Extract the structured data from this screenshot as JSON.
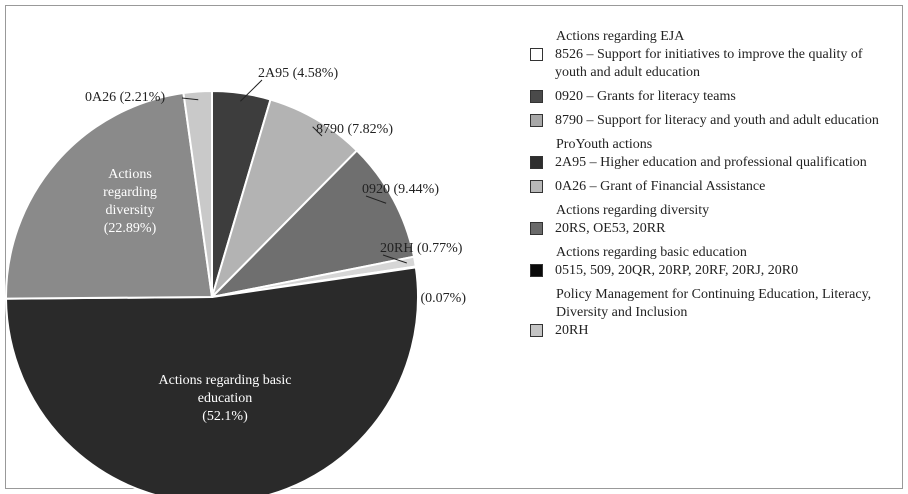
{
  "chart_data": {
    "type": "pie",
    "categories": [
      "2A95",
      "8790",
      "0920",
      "20RH",
      "8526",
      "Actions regarding basic education",
      "Actions regarding diversity",
      "0A26"
    ],
    "values": [
      4.58,
      7.82,
      9.44,
      0.77,
      0.07,
      52.1,
      22.89,
      2.21
    ],
    "value_labels": [
      "(4.58%)",
      "(7.82%)",
      "(9.44%)",
      "(0.77%)",
      "(0.07%)",
      "(52.1%)",
      "(22.89%)",
      "(2.21%)"
    ],
    "colors": [
      "#3d3d3d",
      "#b3b3b3",
      "#6f6f6f",
      "#d6d6d6",
      "#ffffff",
      "#2a2a2a",
      "#8a8a8a",
      "#c9c9c9"
    ],
    "legend": [
      {
        "heading": "Actions regarding EJA",
        "items": [
          {
            "label": "8526 – Support for initiatives to improve the quality of youth and adult education",
            "color": "#ffffff"
          },
          {
            "label": "0920 – Grants for literacy teams",
            "color": "#4a4a4a"
          },
          {
            "label": "8790 – Support for literacy and youth and adult education",
            "color": "#a8a8a8"
          }
        ]
      },
      {
        "heading": "ProYouth actions",
        "items": [
          {
            "label": "2A95 – Higher education and professional qualification",
            "color": "#2e2e2e"
          },
          {
            "label": "0A26 – Grant of Financial Assistance",
            "color": "#b8b8b8"
          }
        ]
      },
      {
        "heading": "Actions regarding diversity",
        "items": [
          {
            "label": "20RS, OE53, 20RR",
            "color": "#6a6a6a"
          }
        ]
      },
      {
        "heading": "Actions regarding basic education",
        "items": [
          {
            "label": "0515, 509, 20QR, 20RP, 20RF, 20RJ, 20R0",
            "color": "#0a0a0a"
          }
        ]
      },
      {
        "heading": "Policy Management for Continuing Education, Literacy, Diversity and Inclusion",
        "items": [
          {
            "label": "20RH",
            "color": "#c4c4c4"
          }
        ]
      }
    ]
  }
}
